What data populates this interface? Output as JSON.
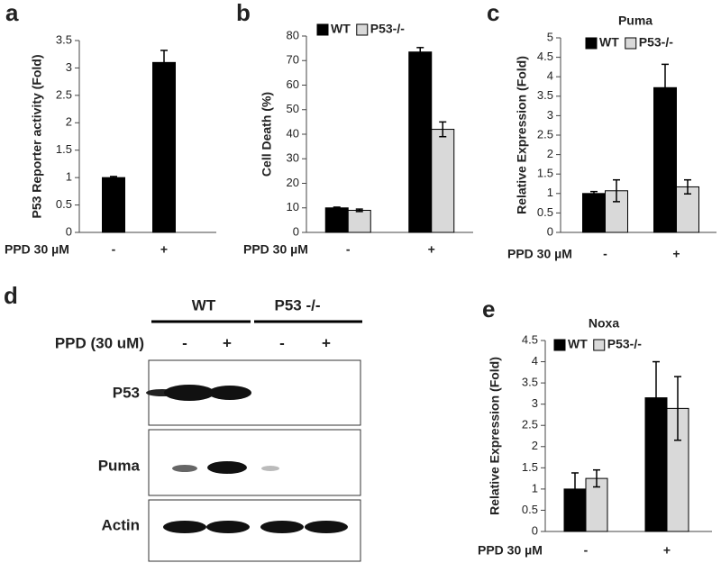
{
  "chart_data": [
    {
      "type": "bar",
      "panel": "a",
      "y_label": "P53 Reporter activity (Fold)",
      "x_label": "PPD 30 µM",
      "categories": [
        "-",
        "+"
      ],
      "values": [
        1,
        3.1
      ],
      "errors": [
        0.02,
        0.22
      ],
      "color": "#000000",
      "ylim": [
        0,
        3.5
      ],
      "yticks": [
        0,
        0.5,
        1,
        1.5,
        2,
        2.5,
        3,
        3.5
      ]
    },
    {
      "type": "bar",
      "panel": "b",
      "y_label": "Cell Death (%)",
      "x_label": "PPD 30 µM",
      "categories": [
        "-",
        "+"
      ],
      "legend": "top-left",
      "series": [
        {
          "name": "WT",
          "color": "#000000",
          "values": [
            10,
            73.5
          ],
          "errors": [
            0.3,
            1.8
          ]
        },
        {
          "name": "P53-/-",
          "color": "#d9d9d9",
          "values": [
            9,
            42
          ],
          "errors": [
            0.5,
            3
          ]
        }
      ],
      "ylim": [
        0,
        80
      ],
      "yticks": [
        0,
        10,
        20,
        30,
        40,
        50,
        60,
        70,
        80
      ]
    },
    {
      "type": "bar",
      "panel": "c",
      "title": "Puma",
      "y_label": "Relative Expression (Fold)",
      "x_label": "PPD 30 µM",
      "categories": [
        "-",
        "+"
      ],
      "legend": "top-left",
      "series": [
        {
          "name": "WT",
          "color": "#000000",
          "values": [
            1,
            3.72
          ],
          "errors": [
            0.05,
            0.6
          ]
        },
        {
          "name": "P53-/-",
          "color": "#d9d9d9",
          "values": [
            1.07,
            1.17
          ],
          "errors": [
            0.28,
            0.18
          ]
        }
      ],
      "ylim": [
        0,
        5
      ],
      "yticks": [
        0,
        0.5,
        1,
        1.5,
        2,
        2.5,
        3,
        3.5,
        4,
        4.5,
        5
      ]
    },
    {
      "type": "bar",
      "panel": "e",
      "title": "Noxa",
      "y_label": "Relative Expression (Fold)",
      "x_label": "PPD 30 µM",
      "categories": [
        "-",
        "+"
      ],
      "legend": "top-left",
      "series": [
        {
          "name": "WT",
          "color": "#000000",
          "values": [
            1,
            3.15
          ],
          "errors": [
            0.38,
            0.85
          ]
        },
        {
          "name": "P53-/-",
          "color": "#d9d9d9",
          "values": [
            1.25,
            2.9
          ],
          "errors": [
            0.2,
            0.75
          ]
        }
      ],
      "ylim": [
        0,
        4.5
      ],
      "yticks": [
        0,
        0.5,
        1,
        1.5,
        2,
        2.5,
        3,
        3.5,
        4,
        4.5
      ]
    }
  ],
  "blot": {
    "panel": "d",
    "groups": [
      "WT",
      "P53 -/-"
    ],
    "treatment": "PPD (30 uM)",
    "lanes": [
      "-",
      "+",
      "-",
      "+"
    ],
    "rows": [
      "P53",
      "Puma",
      "Actin"
    ]
  }
}
